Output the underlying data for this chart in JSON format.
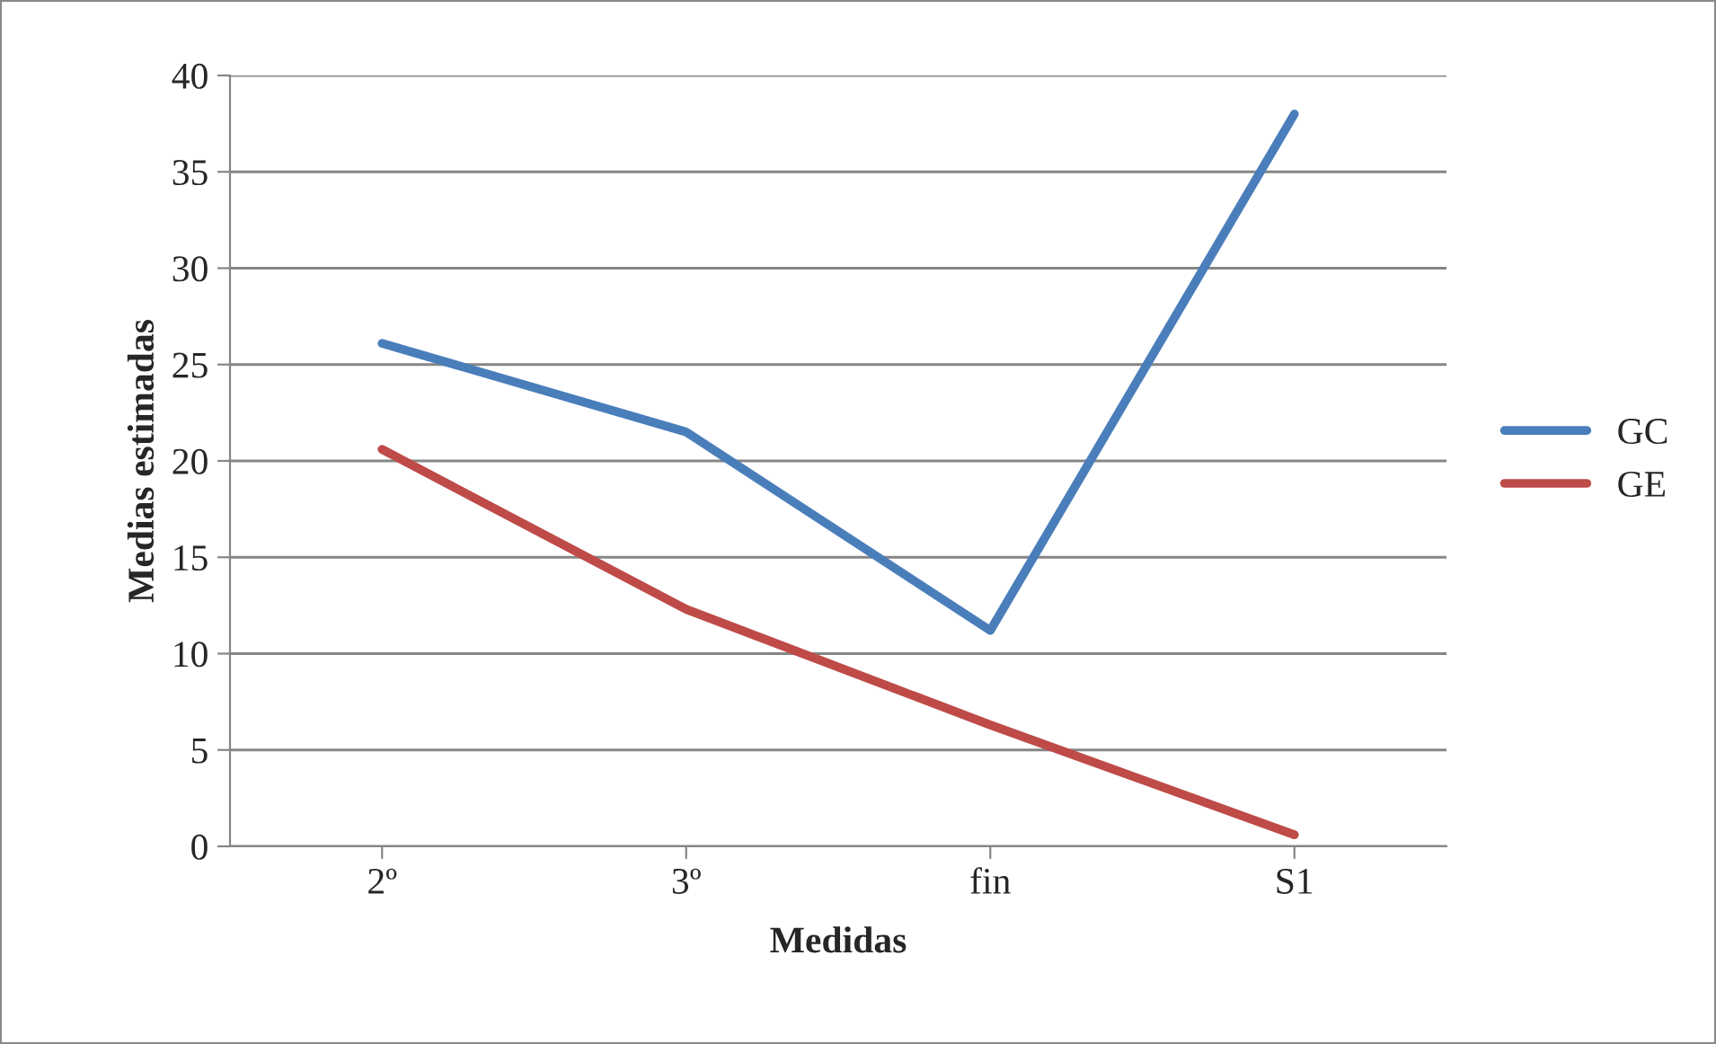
{
  "chart_data": {
    "type": "line",
    "xlabel": "Medidas",
    "ylabel": "Medias estimadas",
    "categories": [
      "2º",
      "3º",
      "fin",
      "S1"
    ],
    "series": [
      {
        "name": "GC",
        "color": "#4a7ebb",
        "values": [
          26.1,
          21.5,
          11.2,
          38.0
        ]
      },
      {
        "name": "GE",
        "color": "#be4b48",
        "values": [
          20.6,
          12.3,
          6.3,
          0.6
        ]
      }
    ],
    "ylim": [
      0,
      40
    ],
    "yticks": [
      0,
      5,
      10,
      15,
      20,
      25,
      30,
      35,
      40
    ],
    "grid": "y",
    "legend": "right",
    "marker": "none",
    "line_style": "solid"
  }
}
